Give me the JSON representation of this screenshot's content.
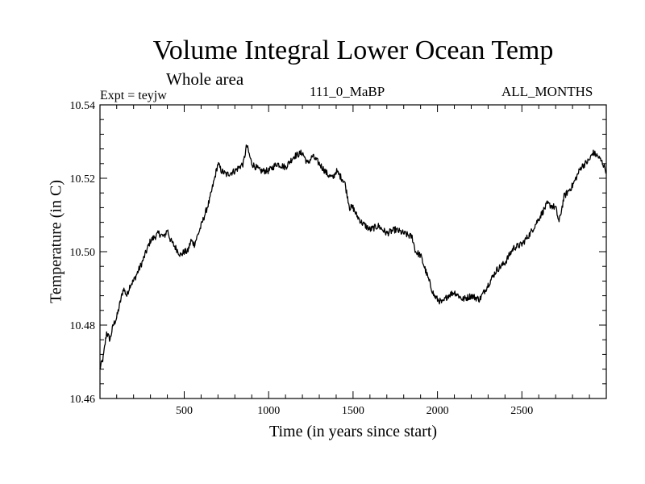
{
  "header": {
    "title": "Volume Integral Lower Ocean Temp",
    "subtitle": "Whole area",
    "expt": "Expt = teyjw",
    "run": "111_0_MaBP",
    "months": "ALL_MONTHS"
  },
  "chart_data": {
    "type": "line",
    "title": "Volume Integral Lower Ocean Temp",
    "subtitle": "Whole area",
    "xlabel": "Time (in years since start)",
    "ylabel": "Temperature (in C)",
    "xlim": [
      1,
      3000
    ],
    "ylim": [
      10.46,
      10.54
    ],
    "xticks": [
      500,
      1000,
      1500,
      2000,
      2500
    ],
    "yticks": [
      10.46,
      10.48,
      10.5,
      10.52,
      10.54
    ],
    "ytick_labels": [
      "10.46",
      "10.48",
      "10.50",
      "10.52",
      "10.54"
    ],
    "grid": false,
    "series": [
      {
        "name": "teyjw",
        "color": "#000000",
        "x": [
          0,
          20,
          40,
          60,
          80,
          100,
          120,
          140,
          160,
          180,
          200,
          250,
          300,
          350,
          380,
          400,
          420,
          450,
          480,
          500,
          520,
          540,
          560,
          600,
          650,
          700,
          720,
          750,
          800,
          850,
          870,
          900,
          950,
          1000,
          1050,
          1100,
          1150,
          1200,
          1230,
          1260,
          1300,
          1350,
          1380,
          1400,
          1450,
          1480,
          1500,
          1520,
          1550,
          1600,
          1650,
          1700,
          1750,
          1800,
          1850,
          1870,
          1900,
          1950,
          1980,
          2000,
          2030,
          2060,
          2100,
          2150,
          2200,
          2250,
          2300,
          2350,
          2400,
          2450,
          2500,
          2550,
          2600,
          2650,
          2700,
          2720,
          2750,
          2800,
          2850,
          2900,
          2920,
          2950,
          2980,
          3000
        ],
        "y": [
          10.468,
          10.471,
          10.478,
          10.476,
          10.48,
          10.482,
          10.486,
          10.49,
          10.488,
          10.491,
          10.492,
          10.497,
          10.503,
          10.505,
          10.504,
          10.506,
          10.503,
          10.501,
          10.499,
          10.5,
          10.5,
          10.503,
          10.502,
          10.507,
          10.514,
          10.524,
          10.522,
          10.521,
          10.522,
          10.524,
          10.529,
          10.524,
          10.522,
          10.522,
          10.524,
          10.523,
          10.526,
          10.527,
          10.524,
          10.526,
          10.524,
          10.521,
          10.52,
          10.522,
          10.519,
          10.512,
          10.512,
          10.51,
          10.508,
          10.506,
          10.507,
          10.505,
          10.506,
          10.505,
          10.504,
          10.5,
          10.499,
          10.492,
          10.488,
          10.487,
          10.486,
          10.488,
          10.489,
          10.487,
          10.488,
          10.487,
          10.491,
          10.495,
          10.497,
          10.501,
          10.502,
          10.505,
          10.509,
          10.513,
          10.512,
          10.508,
          10.515,
          10.518,
          10.523,
          10.525,
          10.527,
          10.526,
          10.524,
          10.522
        ]
      }
    ]
  }
}
